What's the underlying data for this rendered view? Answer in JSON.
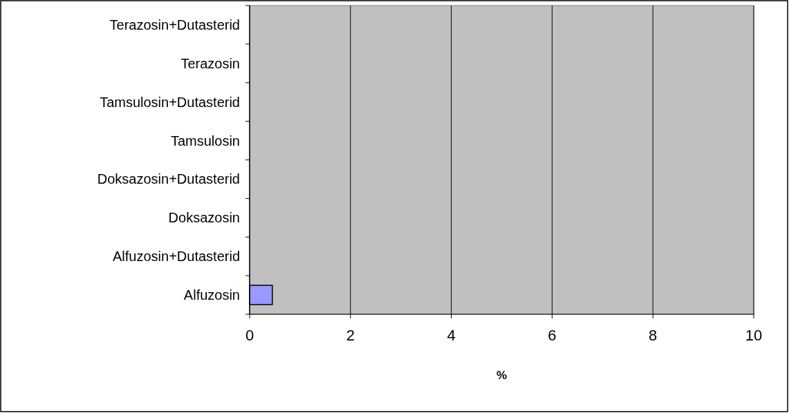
{
  "chart_data": {
    "type": "bar",
    "orientation": "horizontal",
    "xlabel": "%",
    "categories": [
      "Terazosin+Dutasterid",
      "Terazosin",
      "Tamsulosin+Dutasterid",
      "Tamsulosin",
      "Doksazosin+Dutasterid",
      "Doksazosin",
      "Alfuzosin+Dutasterid",
      "Alfuzosin"
    ],
    "values": [
      0,
      0,
      0,
      0,
      0,
      0,
      0,
      0.45
    ],
    "color": "#9999ff",
    "xlim": [
      0,
      10
    ],
    "xticks": [
      0,
      2,
      4,
      6,
      8,
      10
    ],
    "grid": "x"
  }
}
